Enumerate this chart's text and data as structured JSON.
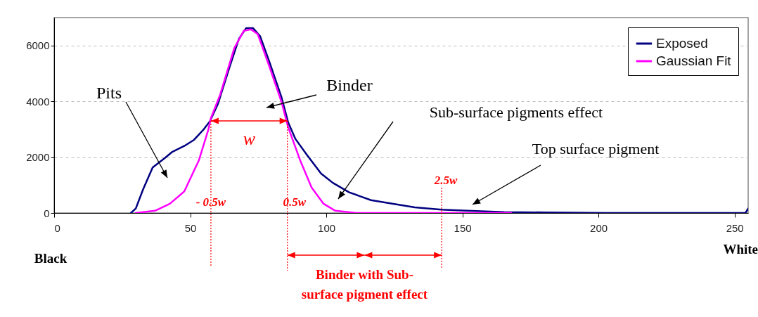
{
  "chart_data": {
    "type": "line",
    "series": [
      {
        "name": "Exposed",
        "color": "#000080",
        "x": [
          28.2,
          30,
          32.7,
          36.2,
          40.7,
          43.4,
          47.8,
          51.4,
          55,
          57.2,
          60.2,
          64.5,
          67.9,
          70.5,
          73.1,
          75.7,
          79.1,
          83.5,
          86,
          88.6,
          92.9,
          98.1,
          102.4,
          108.4,
          116.4,
          125,
          132.5,
          142.3,
          150,
          165.4,
          180,
          202.8,
          254,
          255
        ],
        "values": [
          0,
          160,
          850,
          1630,
          1970,
          2190,
          2400,
          2620,
          3000,
          3280,
          3910,
          5240,
          6240,
          6620,
          6620,
          6330,
          5410,
          4160,
          3240,
          2660,
          2080,
          1410,
          1080,
          740,
          460,
          320,
          200,
          120,
          90,
          30,
          20,
          0,
          0,
          160
        ]
      },
      {
        "name": "Gaussian Fit",
        "color": "#ff00ff",
        "x": [
          30,
          37.1,
          42.5,
          47.8,
          53.2,
          56.7,
          57.6,
          61,
          66.2,
          69.7,
          72.3,
          74.8,
          79.1,
          83.5,
          86,
          90.3,
          94.6,
          99,
          103.3,
          111,
          168
        ],
        "values": [
          0,
          80,
          330,
          770,
          1890,
          3000,
          3400,
          4240,
          5910,
          6530,
          6580,
          6410,
          5240,
          3990,
          3070,
          1910,
          910,
          330,
          80,
          0,
          0
        ]
      }
    ],
    "xlim": [
      0,
      255
    ],
    "xticks": [
      0,
      50,
      100,
      150,
      200,
      250
    ],
    "ylim": [
      0,
      7000
    ],
    "yticks": [
      0,
      2000,
      4000,
      6000
    ],
    "grid": "y",
    "legend": "top right",
    "ref_lines": [
      {
        "axis": "x",
        "value": 57.6,
        "label": "- 0.5w",
        "color": "#ff0000",
        "line_style": "dotted"
      },
      {
        "axis": "x",
        "value": 85.7,
        "label": "0.5w",
        "color": "#ff0000",
        "line_style": "dotted"
      },
      {
        "axis": "x",
        "value": 142.4,
        "label": "2.5w",
        "color": "#ff0000",
        "line_style": "dotted"
      }
    ],
    "annotations": [
      "Pits",
      "Binder",
      "Sub-surface pigments effect",
      "Top surface pigment",
      "w",
      "Black",
      "White",
      "Binder with Sub-surface pigment effect"
    ]
  }
}
